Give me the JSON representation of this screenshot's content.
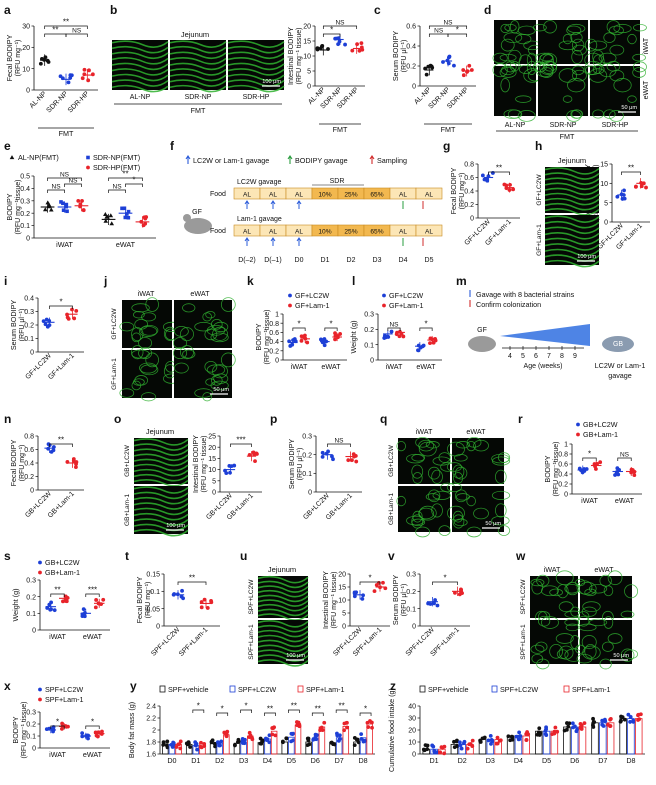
{
  "colors": {
    "black": "#111111",
    "blue": "#1d3fd6",
    "red": "#e8232a",
    "green_tissue": "#2fb02f",
    "diet_band": "#f2b84f",
    "food_fill": "#fce6b6",
    "timeline_grey": "#888888",
    "arrow_green": "#2a9d3f",
    "arrow_blue": "#2a5bd9",
    "arrow_red": "#d22c2c"
  },
  "panel_letters": [
    "a",
    "b",
    "c",
    "d",
    "e",
    "f",
    "g",
    "h",
    "i",
    "j",
    "k",
    "l",
    "m",
    "n",
    "o",
    "p",
    "q",
    "r",
    "s",
    "t",
    "u",
    "v",
    "w",
    "x",
    "y",
    "z"
  ],
  "labels": {
    "fmt": "FMT",
    "jejunum": "Jejunum",
    "iwat": "iWAT",
    "ewat": "eWAT",
    "scale_100": "100 μm",
    "scale_50": "50 μm",
    "ns": "NS",
    "star1": "*",
    "star2": "**",
    "star3": "***",
    "gf": "GF",
    "gb": "GB",
    "al_np": "AL-NP",
    "sdr_np": "SDR-NP",
    "sdr_hp": "SDR-HP",
    "gf_lc2w": "GF+LC2W",
    "gf_lam1": "GF+Lam-1",
    "gb_lc2w": "GB+LC2W",
    "gb_lam1": "GB+Lam-1",
    "spf_lc2w": "SPF+LC2W",
    "spf_lam1": "SPF+Lam-1",
    "spf_vehicle": "SPF+vehicle"
  },
  "legend_e": [
    "AL-NP(FMT)",
    "SDR-NP(FMT)",
    "SDR-HP(FMT)"
  ],
  "legend_gf": [
    "GF+LC2W",
    "GF+Lam-1"
  ],
  "legend_gb": [
    "GB+LC2W",
    "GB+Lam-1"
  ],
  "legend_spf": [
    "SPF+LC2W",
    "SPF+Lam-1"
  ],
  "legend_yz": [
    "SPF+vehicle",
    "SPF+LC2W",
    "SPF+Lam-1"
  ],
  "panel_f": {
    "legend": [
      "LC2W or Lam-1 gavage",
      "BODIPY gavage",
      "Sampling"
    ],
    "food": "Food",
    "gf": "GF",
    "row1_title": "LC2W gavage",
    "row2_title": "Lam-1 gavage",
    "sdr": "SDR",
    "cells": [
      "AL",
      "AL",
      "AL",
      "10%",
      "25%",
      "65%",
      "AL",
      "AL"
    ],
    "days": [
      "D(–2)",
      "D(–1)",
      "D0",
      "D1",
      "D2",
      "D3",
      "D4",
      "D5"
    ]
  },
  "panel_m": {
    "legend": [
      "Gavage with 8 bacterial strains",
      "Confirm colonization"
    ],
    "gf": "GF",
    "gb": "GB",
    "weeks": [
      "4",
      "5",
      "6",
      "7",
      "8",
      "9"
    ],
    "axis": "Age (weeks)",
    "outcome": "LC2W or Lam-1",
    "outcome2": "gavage"
  },
  "chart_data": [
    {
      "panel": "a",
      "type": "scatter-bar",
      "ylabel": "Fecal BODIPY",
      "yunit": "(RFU mg⁻¹)",
      "ylim": [
        0,
        30
      ],
      "yticks": [
        0,
        10,
        20,
        30
      ],
      "categories": [
        "AL-NP",
        "SDR-NP",
        "SDR-HP"
      ],
      "series": [
        {
          "values": [
            14,
            5,
            7
          ]
        }
      ],
      "xgroup": "FMT",
      "sig": [
        "**",
        "**",
        "NS"
      ]
    },
    {
      "panel": "b",
      "type": "scatter-bar",
      "ylabel": "Intestinal BODIPY",
      "yunit": "(RFU mg⁻¹ tissue)",
      "ylim": [
        0,
        20
      ],
      "yticks": [
        0,
        5,
        10,
        15,
        20
      ],
      "categories": [
        "AL-NP",
        "SDR-NP",
        "SDR-HP"
      ],
      "series": [
        {
          "values": [
            12,
            15.5,
            12.5
          ]
        }
      ],
      "xgroup": "FMT",
      "sig": [
        "NS",
        "*"
      ]
    },
    {
      "panel": "c",
      "type": "scatter-bar",
      "ylabel": "Serum BODIPY",
      "yunit": "(RFU μl⁻¹)",
      "ylim": [
        0,
        0.6
      ],
      "yticks": [
        0,
        0.2,
        0.4,
        0.6
      ],
      "categories": [
        "AL-NP",
        "SDR-NP",
        "SDR-HP"
      ],
      "series": [
        {
          "values": [
            0.16,
            0.25,
            0.15
          ]
        }
      ],
      "xgroup": "FMT",
      "sig": [
        "NS",
        "NS",
        "*"
      ]
    },
    {
      "panel": "e",
      "type": "grouped-scatter-bar",
      "ylabel": "BODIPY",
      "yunit": "(RFU mg⁻¹tissue)",
      "ylim": [
        0,
        0.5
      ],
      "yticks": [
        0,
        0.1,
        0.2,
        0.3,
        0.4,
        0.5
      ],
      "categories": [
        "iWAT",
        "eWAT"
      ],
      "series": [
        {
          "name": "AL-NP(FMT)",
          "values": [
            0.25,
            0.15
          ]
        },
        {
          "name": "SDR-NP(FMT)",
          "values": [
            0.25,
            0.2
          ]
        },
        {
          "name": "SDR-HP(FMT)",
          "values": [
            0.26,
            0.13
          ]
        }
      ],
      "sig": [
        "NS",
        "NS",
        "NS",
        "NS",
        "*",
        "**"
      ]
    },
    {
      "panel": "g",
      "type": "scatter-bar",
      "ylabel": "Fecal BODIPY",
      "yunit": "(RFU mg⁻¹)",
      "ylim": [
        0,
        0.8
      ],
      "yticks": [
        0,
        0.2,
        0.4,
        0.6,
        0.8
      ],
      "categories": [
        "GF+LC2W",
        "GF+Lam-1"
      ],
      "series": [
        {
          "values": [
            0.6,
            0.45
          ]
        }
      ],
      "sig": [
        "**"
      ]
    },
    {
      "panel": "h",
      "type": "scatter-bar",
      "ylabel": "Intestinal BODIPY",
      "yunit": "(RFU mg⁻¹ tissue)",
      "ylim": [
        0,
        15
      ],
      "yticks": [
        0,
        5,
        10,
        15
      ],
      "categories": [
        "GF+LC2W",
        "GF+Lam-1"
      ],
      "series": [
        {
          "values": [
            7,
            10
          ]
        }
      ],
      "sig": [
        "**"
      ]
    },
    {
      "panel": "i",
      "type": "scatter-bar",
      "ylabel": "Serum BODIPY",
      "yunit": "(RFU μl⁻¹)",
      "ylim": [
        0,
        0.4
      ],
      "yticks": [
        0,
        0.1,
        0.2,
        0.3,
        0.4
      ],
      "categories": [
        "GF+LC2W",
        "GF+Lam-1"
      ],
      "series": [
        {
          "values": [
            0.22,
            0.28
          ]
        }
      ],
      "sig": [
        "*"
      ]
    },
    {
      "panel": "k",
      "type": "grouped-scatter-bar",
      "ylabel": "BODIPY",
      "yunit": "(RFU mg⁻¹tissue)",
      "ylim": [
        0,
        1
      ],
      "yticks": [
        0,
        0.2,
        0.4,
        0.6,
        0.8,
        1.0
      ],
      "categories": [
        "iWAT",
        "eWAT"
      ],
      "series": [
        {
          "name": "GF+LC2W",
          "values": [
            0.38,
            0.4
          ]
        },
        {
          "name": "GF+Lam-1",
          "values": [
            0.46,
            0.5
          ]
        }
      ],
      "sig": [
        "*",
        "*"
      ]
    },
    {
      "panel": "l",
      "type": "grouped-scatter-bar",
      "ylabel": "Weight (g)",
      "ylim": [
        0,
        0.3
      ],
      "yticks": [
        0,
        0.1,
        0.2,
        0.3
      ],
      "categories": [
        "iWAT",
        "eWAT"
      ],
      "series": [
        {
          "name": "GF+LC2W",
          "values": [
            0.17,
            0.09
          ]
        },
        {
          "name": "GF+Lam-1",
          "values": [
            0.18,
            0.13
          ]
        }
      ],
      "sig": [
        "NS",
        "*"
      ]
    },
    {
      "panel": "n",
      "type": "scatter-bar",
      "ylabel": "Fecal BODIPY",
      "yunit": "(RFU mg⁻¹)",
      "ylim": [
        0,
        0.8
      ],
      "yticks": [
        0,
        0.2,
        0.4,
        0.6,
        0.8
      ],
      "categories": [
        "GB+LC2W",
        "GB+Lam-1"
      ],
      "series": [
        {
          "values": [
            0.62,
            0.4
          ]
        }
      ],
      "sig": [
        "**"
      ]
    },
    {
      "panel": "o",
      "type": "scatter-bar",
      "ylabel": "Intestinal BODIPY",
      "yunit": "(RFU mg⁻¹ tissue)",
      "ylim": [
        0,
        25
      ],
      "yticks": [
        0,
        5,
        10,
        15,
        20,
        25
      ],
      "categories": [
        "GB+LC2W",
        "GB+Lam-1"
      ],
      "series": [
        {
          "values": [
            10,
            16
          ]
        }
      ],
      "sig": [
        "***"
      ]
    },
    {
      "panel": "p",
      "type": "scatter-bar",
      "ylabel": "Serum BODIPY",
      "yunit": "(RFU μl⁻¹)",
      "ylim": [
        0,
        0.3
      ],
      "yticks": [
        0,
        0.1,
        0.2,
        0.3
      ],
      "categories": [
        "GB+LC2W",
        "GB+Lam-1"
      ],
      "series": [
        {
          "values": [
            0.2,
            0.19
          ]
        }
      ],
      "sig": [
        "NS"
      ]
    },
    {
      "panel": "r",
      "type": "grouped-scatter-bar",
      "ylabel": "BODIPY",
      "yunit": "(RFU mg⁻¹tissue)",
      "ylim": [
        0,
        1
      ],
      "yticks": [
        0,
        0.2,
        0.4,
        0.6,
        0.8,
        1.0
      ],
      "categories": [
        "iWAT",
        "eWAT"
      ],
      "series": [
        {
          "name": "GB+LC2W",
          "values": [
            0.48,
            0.45
          ]
        },
        {
          "name": "GB+Lam-1",
          "values": [
            0.57,
            0.45
          ]
        }
      ],
      "sig": [
        "*",
        "NS"
      ]
    },
    {
      "panel": "s",
      "type": "grouped-scatter-bar",
      "ylabel": "Weight (g)",
      "ylim": [
        0,
        0.3
      ],
      "yticks": [
        0,
        0.1,
        0.2,
        0.3
      ],
      "categories": [
        "iWAT",
        "eWAT"
      ],
      "series": [
        {
          "name": "GB+LC2W",
          "values": [
            0.14,
            0.1
          ]
        },
        {
          "name": "GB+Lam-1",
          "values": [
            0.19,
            0.16
          ]
        }
      ],
      "sig": [
        "**",
        "***"
      ]
    },
    {
      "panel": "t",
      "type": "scatter-bar",
      "ylabel": "Fecal BODIPY",
      "yunit": "(RFU mg⁻¹)",
      "ylim": [
        0,
        0.15
      ],
      "yticks": [
        0,
        0.05,
        0.1,
        0.15
      ],
      "categories": [
        "SPF+LC2W",
        "SPF+Lam-1"
      ],
      "series": [
        {
          "values": [
            0.09,
            0.065
          ]
        }
      ],
      "sig": [
        "**"
      ]
    },
    {
      "panel": "u",
      "type": "scatter-bar",
      "ylabel": "Intestinal BODIPY",
      "yunit": "(RFU mg⁻¹ tissue)",
      "ylim": [
        0,
        20
      ],
      "yticks": [
        0,
        5,
        10,
        15,
        20
      ],
      "categories": [
        "SPF+LC2W",
        "SPF+Lam-1"
      ],
      "series": [
        {
          "values": [
            12,
            15
          ]
        }
      ],
      "sig": [
        "*"
      ]
    },
    {
      "panel": "v",
      "type": "scatter-bar",
      "ylabel": "Serum BODIPY",
      "yunit": "(RFU μl⁻¹)",
      "ylim": [
        0,
        0.3
      ],
      "yticks": [
        0,
        0.1,
        0.2,
        0.3
      ],
      "categories": [
        "SPF+LC2W",
        "SPF+Lam-1"
      ],
      "series": [
        {
          "values": [
            0.14,
            0.2
          ]
        }
      ],
      "sig": [
        "*"
      ]
    },
    {
      "panel": "x",
      "type": "grouped-scatter-bar",
      "ylabel": "BODIPY",
      "yunit": "(RFU mg⁻¹ tissue)",
      "ylim": [
        0,
        0.3
      ],
      "yticks": [
        0,
        0.1,
        0.2,
        0.3
      ],
      "categories": [
        "iWAT",
        "eWAT"
      ],
      "series": [
        {
          "name": "SPF+LC2W",
          "values": [
            0.15,
            0.1
          ]
        },
        {
          "name": "SPF+Lam-1",
          "values": [
            0.18,
            0.12
          ]
        }
      ],
      "sig": [
        "*",
        "*"
      ]
    },
    {
      "panel": "y",
      "type": "grouped-scatter-bar",
      "ylabel": "Body fat mass (g)",
      "ylim": [
        1.6,
        2.4
      ],
      "yticks": [
        1.6,
        1.8,
        2.0,
        2.2,
        2.4
      ],
      "categories": [
        "D0",
        "D1",
        "D2",
        "D3",
        "D4",
        "D5",
        "D6",
        "D7",
        "D8"
      ],
      "series": [
        {
          "name": "SPF+vehicle",
          "values": [
            1.77,
            1.76,
            1.77,
            1.78,
            1.79,
            1.8,
            1.8,
            1.79,
            1.8
          ]
        },
        {
          "name": "SPF+LC2W",
          "values": [
            1.76,
            1.74,
            1.78,
            1.8,
            1.85,
            1.88,
            1.87,
            1.87,
            1.87
          ]
        },
        {
          "name": "SPF+Lam-1",
          "values": [
            1.76,
            1.77,
            1.92,
            1.9,
            1.98,
            2.08,
            2.05,
            2.06,
            2.1
          ]
        }
      ],
      "sig": [
        "*",
        "*",
        "*",
        "**",
        "**",
        "**",
        "**",
        "*"
      ]
    },
    {
      "panel": "z",
      "type": "grouped-scatter-bar",
      "ylabel": "Cumulative food intake (g)",
      "ylim": [
        0,
        40
      ],
      "yticks": [
        0,
        10,
        20,
        30,
        40
      ],
      "categories": [
        "D1",
        "D2",
        "D3",
        "D4",
        "D5",
        "D6",
        "D7",
        "D8"
      ],
      "series": [
        {
          "name": "SPF+vehicle",
          "values": [
            4,
            8,
            12,
            15,
            19,
            22.5,
            26,
            29.5
          ]
        },
        {
          "name": "SPF+LC2W",
          "values": [
            4,
            8,
            12,
            15.5,
            19,
            22.5,
            26,
            29.5
          ]
        },
        {
          "name": "SPF+Lam-1",
          "values": [
            4,
            8,
            12,
            15,
            19,
            22.5,
            26,
            29.5
          ]
        }
      ]
    }
  ]
}
